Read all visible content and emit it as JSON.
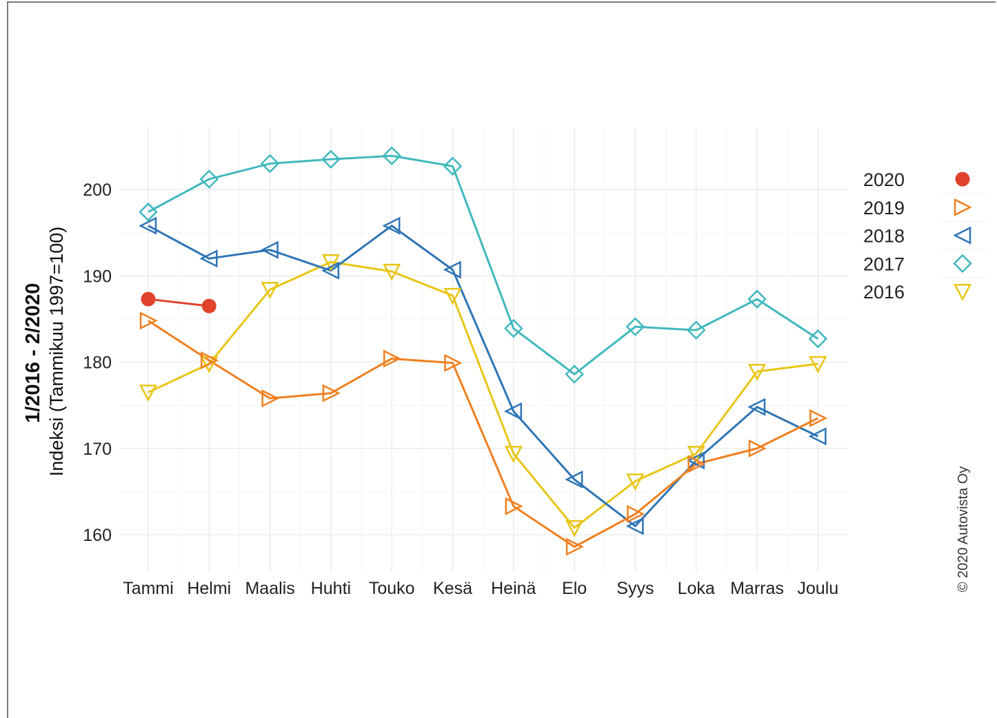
{
  "chart_data": {
    "type": "line",
    "title_line1": "1/2016 - 2/2020",
    "ylabel": "Indeksi (Tammikuu 1997=100)",
    "categories": [
      "Tammi",
      "Helmi",
      "Maalis",
      "Huhti",
      "Touko",
      "Kesä",
      "Heinä",
      "Elo",
      "Syys",
      "Loka",
      "Marras",
      "Joulu"
    ],
    "yticks": [
      160,
      170,
      180,
      190,
      200
    ],
    "ylim": [
      155.2,
      207
    ],
    "grid": true,
    "legend_position": "right",
    "series": [
      {
        "name": "2020",
        "color": "#e0422c",
        "marker": "filled-circle",
        "values": [
          187.3,
          186.5,
          null,
          null,
          null,
          null,
          null,
          null,
          null,
          null,
          null,
          null
        ]
      },
      {
        "name": "2019",
        "color": "#f07f1e",
        "marker": "triangle-right",
        "values": [
          184.8,
          180.2,
          175.8,
          176.4,
          180.4,
          179.9,
          163.3,
          158.6,
          162.4,
          168.2,
          170.0,
          173.5
        ]
      },
      {
        "name": "2018",
        "color": "#2e74b5",
        "marker": "triangle-left",
        "values": [
          195.8,
          192.0,
          193.0,
          190.6,
          195.8,
          190.7,
          174.3,
          166.4,
          161.0,
          168.6,
          174.8,
          171.4
        ]
      },
      {
        "name": "2017",
        "color": "#3fb8bd",
        "marker": "diamond",
        "values": [
          197.4,
          201.2,
          203.0,
          203.5,
          203.9,
          202.7,
          183.9,
          178.6,
          184.1,
          183.7,
          187.3,
          182.7
        ]
      },
      {
        "name": "2016",
        "color": "#e8c514",
        "marker": "triangle-down",
        "values": [
          176.5,
          179.8,
          188.4,
          191.6,
          190.5,
          187.7,
          169.4,
          160.8,
          166.2,
          169.4,
          178.9,
          179.8
        ]
      }
    ],
    "copyright": "© 2020 Autovista Oy"
  }
}
